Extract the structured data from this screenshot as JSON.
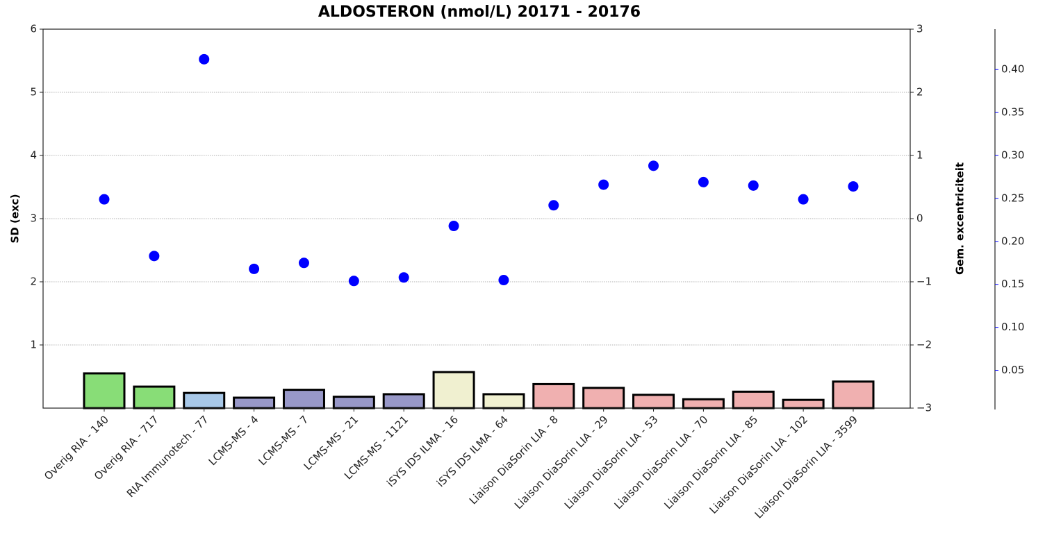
{
  "chart_data": {
    "type": "bar",
    "title": "ALDOSTERON (nmol/L) 20171 - 20176",
    "ylabel": "SD (exc)",
    "y2label": "Gem. excentriciteit",
    "categories": [
      "Overig RIA - 140",
      "Overig RIA - 717",
      "RIA Immunotech - 77",
      "LCMS-MS - 4",
      "LCMS-MS - 7",
      "LCMS-MS - 21",
      "LCMS-MS - 1121",
      "iSYS IDS ILMA - 16",
      "iSYS IDS ILMA - 64",
      "Liaison DiaSorin LIA - 8",
      "Liaison DiaSorin LIA - 29",
      "Liaison DiaSorin LIA - 53",
      "Liaison DiaSorin LIA - 70",
      "Liaison DiaSorin LIA - 85",
      "Liaison DiaSorin LIA - 102",
      "Liaison DiaSorin LIA - 3599"
    ],
    "values": [
      0.55,
      0.34,
      0.24,
      0.165,
      0.29,
      0.18,
      0.22,
      0.57,
      0.22,
      0.38,
      0.32,
      0.21,
      0.14,
      0.26,
      0.13,
      0.42
    ],
    "colors": [
      "#88dd77",
      "#88dd77",
      "#a8c8e8",
      "#9898c8",
      "#9898c8",
      "#9898c8",
      "#9898c8",
      "#f0f0d0",
      "#f0f0d0",
      "#f0b0b0",
      "#f0b0b0",
      "#f0b0b0",
      "#f0b0b0",
      "#f0b0b0",
      "#f0b0b0",
      "#f0b0b0"
    ],
    "points": {
      "color": "#0000ff",
      "values": [
        0.249,
        0.183,
        0.412,
        0.168,
        0.175,
        0.154,
        0.158,
        0.218,
        0.155,
        0.242,
        0.266,
        0.288,
        0.269,
        0.265,
        0.249,
        0.264
      ]
    },
    "ylim": [
      0,
      6
    ],
    "yticks": [
      1,
      2,
      3,
      4,
      5,
      6
    ],
    "y2lim": [
      -3,
      3
    ],
    "y2ticks": [
      {
        "value": -3,
        "label": "−3"
      },
      {
        "value": -2,
        "label": "−2"
      },
      {
        "value": -1,
        "label": "−1"
      },
      0,
      1,
      2,
      3
    ],
    "y3lim": [
      0.006,
      0.447
    ],
    "y3ticks": [
      0.05,
      0.1,
      0.15,
      0.2,
      0.25,
      0.3,
      0.35,
      0.4
    ],
    "y3color": "#0000ff",
    "y3ticklabels": [
      "0.05",
      "0.10",
      "0.15",
      "0.20",
      "0.25",
      "0.30",
      "0.35",
      "0.40"
    ],
    "grid": true
  }
}
